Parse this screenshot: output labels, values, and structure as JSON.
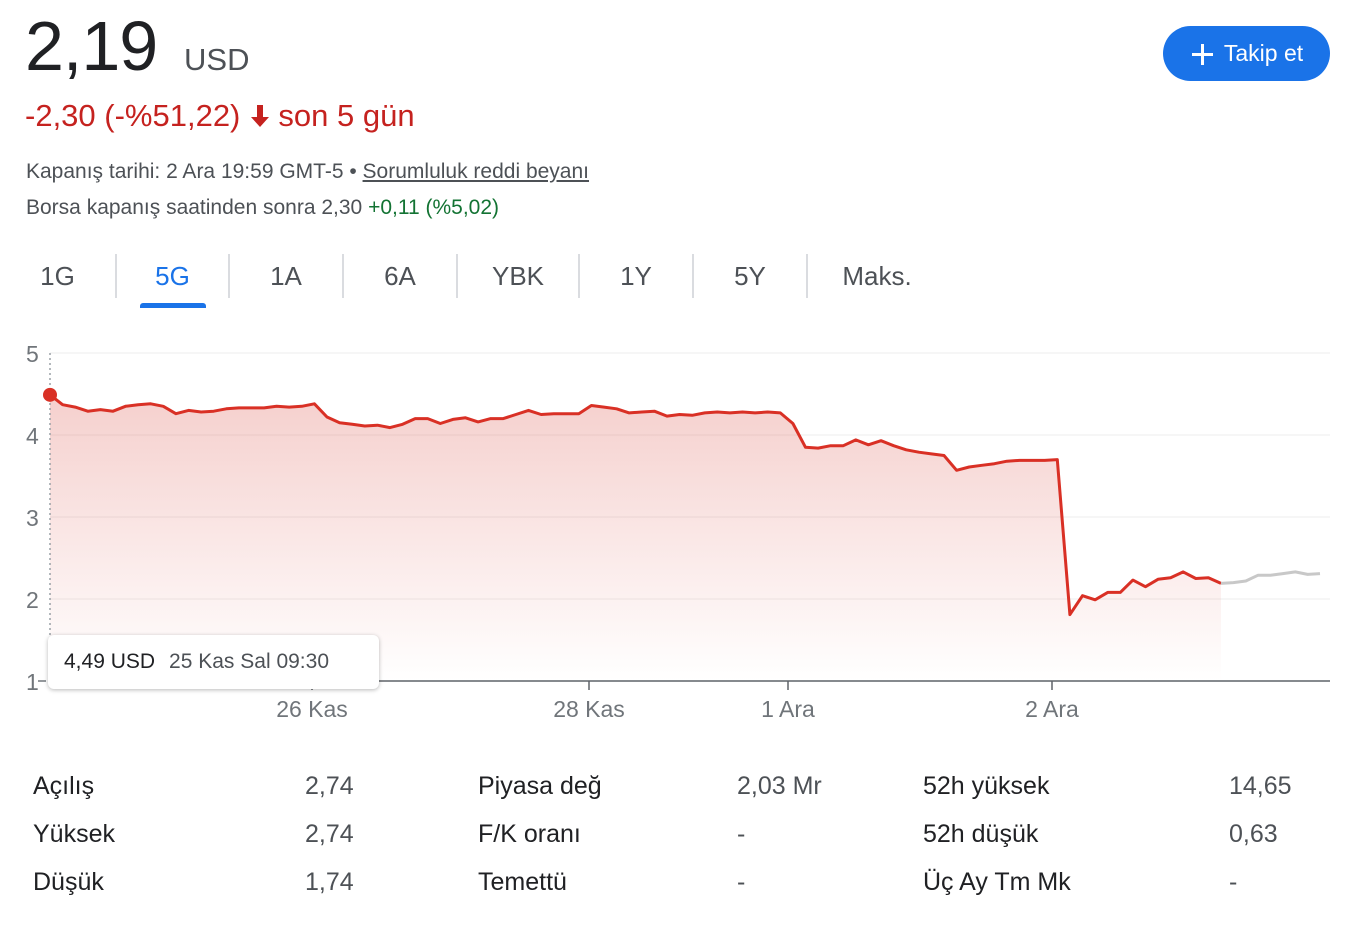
{
  "header": {
    "price": "2,19",
    "currency": "USD",
    "change": "-2,30 (-%51,22)",
    "period": "son 5 gün",
    "close_info": "Kapanış tarihi: 2 Ara 19:59 GMT-5 •",
    "disclaimer": "Sorumluluk reddi beyanı",
    "after_hours_label": "Borsa kapanış saatinden sonra 2,30",
    "after_hours_change": "+0,11 (%5,02)",
    "follow_label": "Takip et",
    "colors": {
      "negative": "#c5221f",
      "positive": "#137333",
      "accent": "#1a73e8"
    }
  },
  "tabs": [
    {
      "label": "1G",
      "active": false
    },
    {
      "label": "5G",
      "active": true
    },
    {
      "label": "1A",
      "active": false
    },
    {
      "label": "6A",
      "active": false
    },
    {
      "label": "YBK",
      "active": false
    },
    {
      "label": "1Y",
      "active": false
    },
    {
      "label": "5Y",
      "active": false
    },
    {
      "label": "Maks.",
      "active": false
    }
  ],
  "tooltip": {
    "value": "4,49 USD",
    "date": "25 Kas Sal 09:30"
  },
  "chart_data": {
    "type": "area",
    "y_ticks": [
      "5",
      "4",
      "3",
      "2",
      "1"
    ],
    "ylim": [
      1,
      5
    ],
    "x_labels": [
      "26 Kas",
      "28 Kas",
      "1 Ara",
      "2 Ara"
    ],
    "grid": true,
    "series": [
      {
        "color": "#d93025",
        "values": [
          4.49,
          4.37,
          4.34,
          4.29,
          4.31,
          4.29,
          4.35,
          4.37,
          4.38,
          4.35,
          4.26,
          4.3,
          4.28,
          4.29,
          4.32,
          4.33,
          4.33,
          4.33,
          4.35,
          4.34,
          4.35,
          4.38,
          4.22,
          4.15,
          4.13,
          4.11,
          4.12,
          4.09,
          4.13,
          4.2,
          4.2,
          4.14,
          4.19,
          4.21,
          4.16,
          4.2,
          4.2,
          4.25,
          4.3,
          4.25,
          4.26,
          4.26,
          4.26,
          4.36,
          4.34,
          4.32,
          4.27,
          4.28,
          4.29,
          4.23,
          4.25,
          4.24,
          4.27,
          4.28,
          4.27,
          4.28,
          4.27,
          4.28,
          4.27,
          4.14,
          3.85,
          3.84,
          3.87,
          3.87,
          3.94,
          3.88,
          3.93,
          3.87,
          3.82,
          3.79,
          3.77,
          3.75,
          3.57,
          3.61,
          3.63,
          3.65,
          3.68,
          3.69,
          3.69,
          3.69,
          3.7,
          1.81,
          2.04,
          1.99,
          2.08,
          2.08,
          2.23,
          2.15,
          2.24,
          2.26,
          2.33,
          2.25,
          2.26,
          2.19
        ]
      },
      {
        "color": "#c8c8c8",
        "values": [
          2.19,
          2.2,
          2.22,
          2.29,
          2.29,
          2.31,
          2.33,
          2.3,
          2.31
        ]
      }
    ]
  },
  "stats": [
    {
      "label": "Açılış",
      "value": "2,74"
    },
    {
      "label": "Yüksek",
      "value": "2,74"
    },
    {
      "label": "Düşük",
      "value": "1,74"
    },
    {
      "label": "Piyasa değ",
      "value": "2,03 Mr"
    },
    {
      "label": "F/K oranı",
      "value": "-"
    },
    {
      "label": "Temettü",
      "value": "-"
    },
    {
      "label": "52h yüksek",
      "value": "14,65"
    },
    {
      "label": "52h düşük",
      "value": "0,63"
    },
    {
      "label": "Üç Ay Tm Mk",
      "value": "-"
    }
  ]
}
